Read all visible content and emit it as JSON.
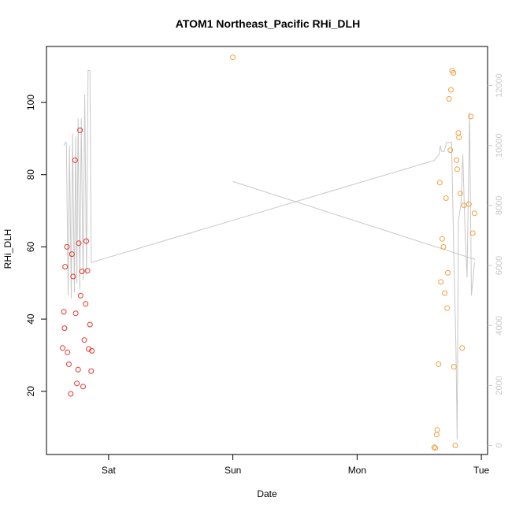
{
  "chart_data": {
    "type": "scatter",
    "title": "ATOM1 Northeast_Pacific RHi_DLH",
    "xlabel": "Date",
    "ylabel": "RHi_DLH",
    "x_ticks": [
      "Sat",
      "Sun",
      "Mon",
      "Tue"
    ],
    "x_range_days": [
      -0.5,
      3.05
    ],
    "y_ticks": [
      20,
      40,
      60,
      80,
      100
    ],
    "ylim": [
      2.5,
      115.5
    ],
    "y2_ticks": [
      0,
      2000,
      4000,
      6000,
      8000,
      10000,
      12000
    ],
    "y2lim": [
      -300,
      13300
    ],
    "grid": false,
    "colors": {
      "series_a": "#e8332b",
      "series_b": "#f2a03d",
      "altitude_line": "#c8c8c8",
      "axis": "#000000",
      "right_axis": "#c8c8c8"
    },
    "series": [
      {
        "color": "#e8332b",
        "points": [
          [
            -0.37,
            32.0
          ],
          [
            -0.36,
            42.0
          ],
          [
            -0.355,
            37.5
          ],
          [
            -0.35,
            54.5
          ],
          [
            -0.335,
            60.0
          ],
          [
            -0.33,
            30.8
          ],
          [
            -0.32,
            27.5
          ],
          [
            -0.305,
            19.3
          ],
          [
            -0.295,
            58.0
          ],
          [
            -0.285,
            51.8
          ],
          [
            -0.27,
            84.0
          ],
          [
            -0.265,
            41.6
          ],
          [
            -0.255,
            22.2
          ],
          [
            -0.245,
            26.0
          ],
          [
            -0.24,
            61.0
          ],
          [
            -0.23,
            92.3
          ],
          [
            -0.225,
            46.5
          ],
          [
            -0.215,
            53.2
          ],
          [
            -0.205,
            21.3
          ],
          [
            -0.195,
            34.2
          ],
          [
            -0.185,
            44.2
          ],
          [
            -0.18,
            61.6
          ],
          [
            -0.17,
            53.4
          ],
          [
            -0.16,
            31.7
          ],
          [
            -0.15,
            38.5
          ],
          [
            -0.14,
            25.6
          ],
          [
            -0.135,
            31.2
          ]
        ]
      },
      {
        "color": "#f2a03d",
        "points": [
          [
            1.0,
            112.5
          ],
          [
            2.62,
            4.5
          ],
          [
            2.63,
            4.3
          ],
          [
            2.64,
            8.0
          ],
          [
            2.645,
            9.3
          ],
          [
            2.655,
            27.5
          ],
          [
            2.665,
            77.8
          ],
          [
            2.675,
            50.3
          ],
          [
            2.685,
            62.2
          ],
          [
            2.695,
            60.0
          ],
          [
            2.705,
            47.2
          ],
          [
            2.715,
            73.5
          ],
          [
            2.725,
            43.0
          ],
          [
            2.73,
            52.8
          ],
          [
            2.74,
            101.0
          ],
          [
            2.75,
            86.8
          ],
          [
            2.755,
            103.5
          ],
          [
            2.765,
            108.8
          ],
          [
            2.775,
            108.2
          ],
          [
            2.78,
            26.8
          ],
          [
            2.79,
            5.0
          ],
          [
            2.8,
            84.0
          ],
          [
            2.805,
            81.5
          ],
          [
            2.815,
            91.6
          ],
          [
            2.82,
            90.3
          ],
          [
            2.83,
            74.8
          ],
          [
            2.845,
            32.0
          ],
          [
            2.86,
            71.5
          ],
          [
            2.9,
            71.8
          ],
          [
            2.915,
            96.1
          ],
          [
            2.93,
            63.8
          ],
          [
            2.945,
            69.3
          ]
        ]
      }
    ]
  }
}
